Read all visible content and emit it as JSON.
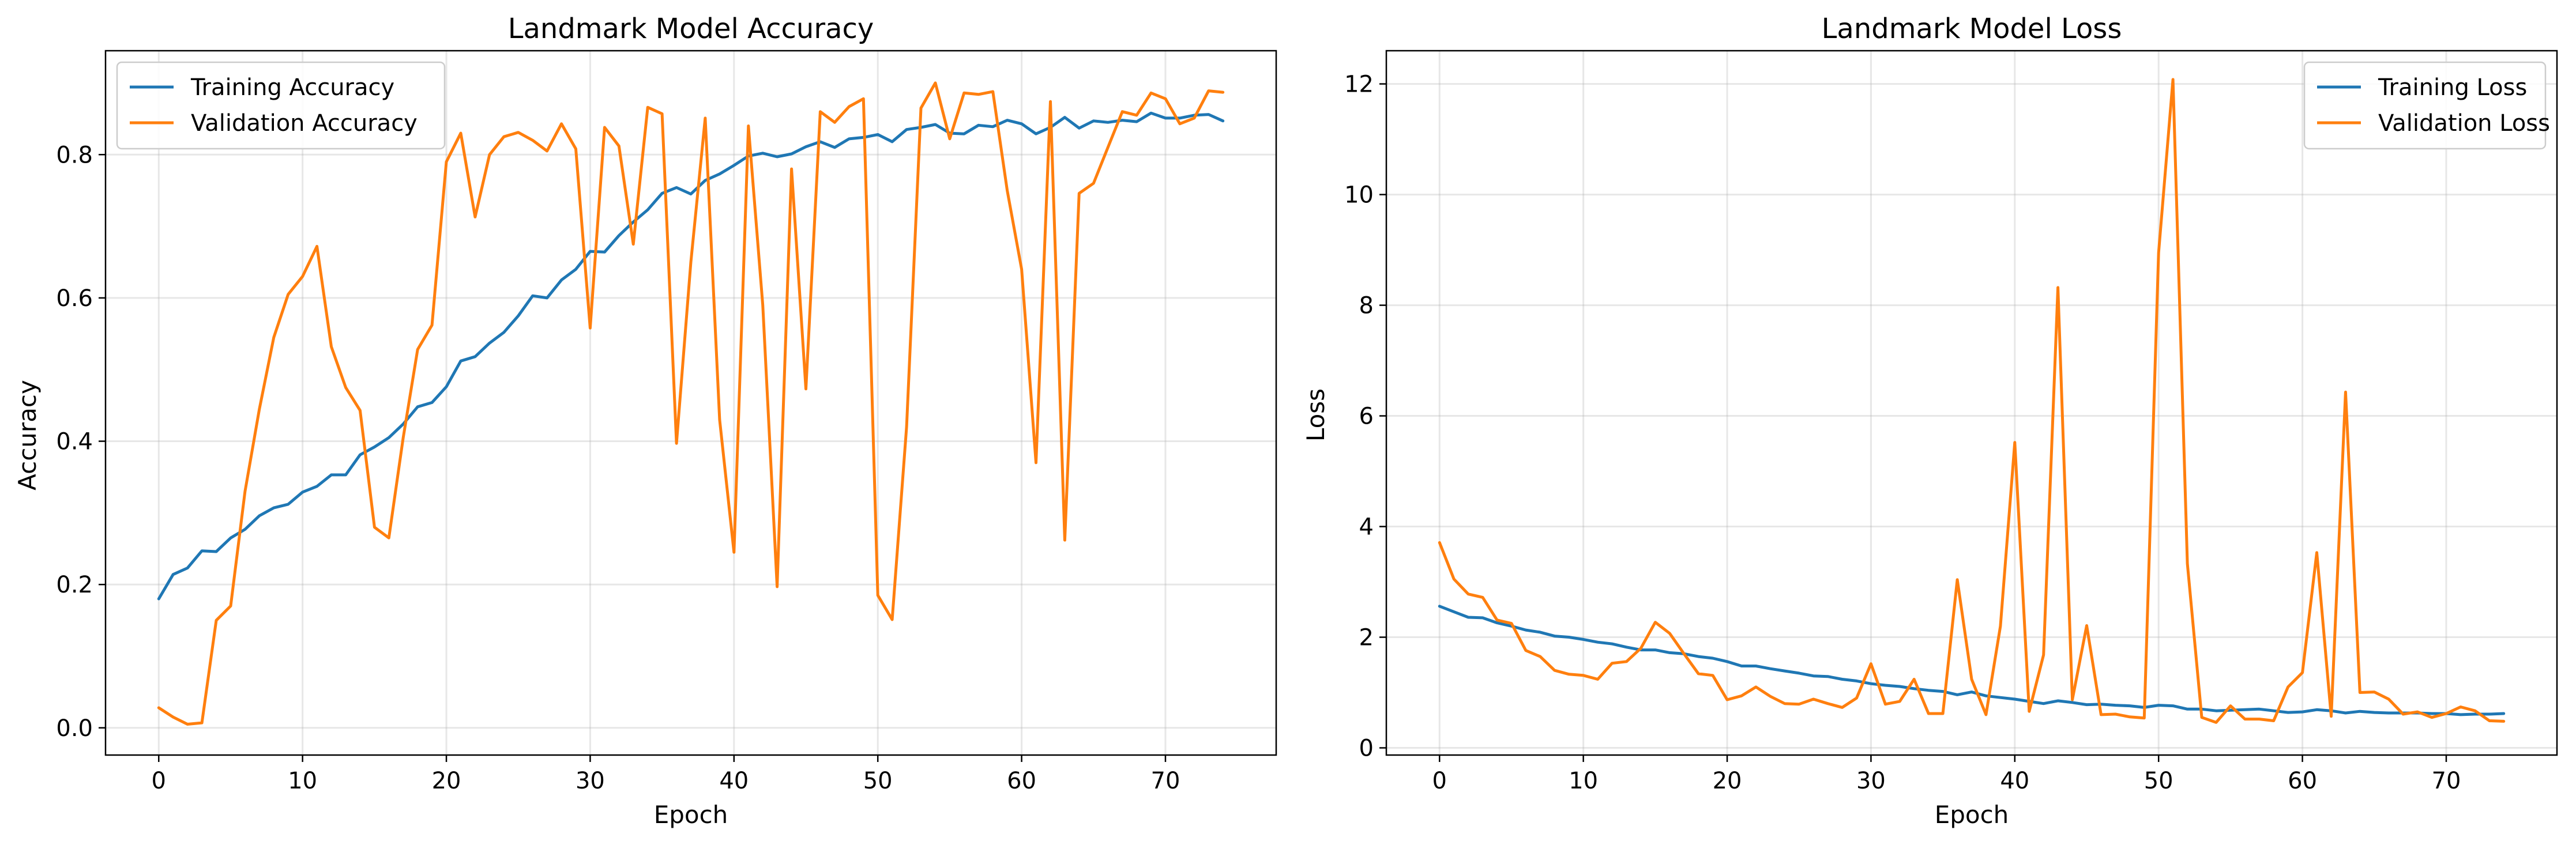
{
  "colors": {
    "training": "#1f77b4",
    "validation": "#ff7f0e"
  },
  "chart_data": [
    {
      "type": "line",
      "title": "Landmark Model Accuracy",
      "xlabel": "Epoch",
      "ylabel": "Accuracy",
      "xlim": [
        -3.7,
        77.7
      ],
      "ylim": [
        -0.038,
        0.945
      ],
      "xticks": [
        0,
        10,
        20,
        30,
        40,
        50,
        60,
        70
      ],
      "yticks": [
        0.0,
        0.2,
        0.4,
        0.6,
        0.8
      ],
      "ytick_labels": [
        "0.0",
        "0.2",
        "0.4",
        "0.6",
        "0.8"
      ],
      "grid": true,
      "legend": "top-left",
      "x": [
        0,
        1,
        2,
        3,
        4,
        5,
        6,
        7,
        8,
        9,
        10,
        11,
        12,
        13,
        14,
        15,
        16,
        17,
        18,
        19,
        20,
        21,
        22,
        23,
        24,
        25,
        26,
        27,
        28,
        29,
        30,
        31,
        32,
        33,
        34,
        35,
        36,
        37,
        38,
        39,
        40,
        41,
        42,
        43,
        44,
        45,
        46,
        47,
        48,
        49,
        50,
        51,
        52,
        53,
        54,
        55,
        56,
        57,
        58,
        59,
        60,
        61,
        62,
        63,
        64,
        65,
        66,
        67,
        68,
        69,
        70,
        71,
        72,
        73,
        74
      ],
      "series": [
        {
          "name": "Training Accuracy",
          "color": "#1f77b4",
          "values": [
            0.18,
            0.214,
            0.223,
            0.247,
            0.246,
            0.265,
            0.277,
            0.296,
            0.307,
            0.312,
            0.329,
            0.337,
            0.353,
            0.353,
            0.381,
            0.392,
            0.405,
            0.424,
            0.448,
            0.454,
            0.476,
            0.512,
            0.518,
            0.537,
            0.552,
            0.575,
            0.603,
            0.6,
            0.625,
            0.64,
            0.665,
            0.664,
            0.687,
            0.706,
            0.723,
            0.746,
            0.754,
            0.745,
            0.764,
            0.773,
            0.785,
            0.798,
            0.802,
            0.797,
            0.801,
            0.811,
            0.818,
            0.81,
            0.822,
            0.824,
            0.828,
            0.818,
            0.835,
            0.838,
            0.842,
            0.83,
            0.829,
            0.841,
            0.839,
            0.848,
            0.843,
            0.829,
            0.838,
            0.852,
            0.837,
            0.847,
            0.845,
            0.848,
            0.846,
            0.858,
            0.851,
            0.851,
            0.855,
            0.856,
            0.847
          ]
        },
        {
          "name": "Validation Accuracy",
          "color": "#ff7f0e",
          "values": [
            0.028,
            0.015,
            0.005,
            0.007,
            0.15,
            0.17,
            0.33,
            0.445,
            0.545,
            0.605,
            0.63,
            0.672,
            0.532,
            0.475,
            0.443,
            0.28,
            0.265,
            0.405,
            0.528,
            0.562,
            0.79,
            0.83,
            0.713,
            0.8,
            0.825,
            0.831,
            0.82,
            0.805,
            0.843,
            0.808,
            0.558,
            0.838,
            0.812,
            0.675,
            0.866,
            0.857,
            0.397,
            0.65,
            0.851,
            0.43,
            0.245,
            0.84,
            0.59,
            0.197,
            0.78,
            0.473,
            0.86,
            0.845,
            0.867,
            0.878,
            0.185,
            0.151,
            0.42,
            0.865,
            0.9,
            0.822,
            0.886,
            0.884,
            0.888,
            0.75,
            0.64,
            0.37,
            0.874,
            0.262,
            0.746,
            0.76,
            0.81,
            0.86,
            0.855,
            0.886,
            0.878,
            0.843,
            0.851,
            0.889,
            0.887
          ]
        }
      ]
    },
    {
      "type": "line",
      "title": "Landmark Model Loss",
      "xlabel": "Epoch",
      "ylabel": "Loss",
      "xlim": [
        -3.7,
        77.7
      ],
      "ylim": [
        -0.13,
        12.6
      ],
      "xticks": [
        0,
        10,
        20,
        30,
        40,
        50,
        60,
        70
      ],
      "yticks": [
        0,
        2,
        4,
        6,
        8,
        10,
        12
      ],
      "ytick_labels": [
        "0",
        "2",
        "4",
        "6",
        "8",
        "10",
        "12"
      ],
      "grid": true,
      "legend": "top-right",
      "x": [
        0,
        1,
        2,
        3,
        4,
        5,
        6,
        7,
        8,
        9,
        10,
        11,
        12,
        13,
        14,
        15,
        16,
        17,
        18,
        19,
        20,
        21,
        22,
        23,
        24,
        25,
        26,
        27,
        28,
        29,
        30,
        31,
        32,
        33,
        34,
        35,
        36,
        37,
        38,
        39,
        40,
        41,
        42,
        43,
        44,
        45,
        46,
        47,
        48,
        49,
        50,
        51,
        52,
        53,
        54,
        55,
        56,
        57,
        58,
        59,
        60,
        61,
        62,
        63,
        64,
        65,
        66,
        67,
        68,
        69,
        70,
        71,
        72,
        73,
        74
      ],
      "series": [
        {
          "name": "Training Loss",
          "color": "#1f77b4",
          "values": [
            2.56,
            2.46,
            2.36,
            2.35,
            2.26,
            2.2,
            2.13,
            2.09,
            2.02,
            2.0,
            1.96,
            1.91,
            1.88,
            1.82,
            1.77,
            1.77,
            1.72,
            1.7,
            1.65,
            1.62,
            1.56,
            1.48,
            1.48,
            1.43,
            1.39,
            1.35,
            1.3,
            1.29,
            1.24,
            1.21,
            1.16,
            1.13,
            1.11,
            1.07,
            1.04,
            1.02,
            0.96,
            1.01,
            0.94,
            0.91,
            0.88,
            0.84,
            0.8,
            0.85,
            0.82,
            0.78,
            0.79,
            0.77,
            0.76,
            0.73,
            0.77,
            0.76,
            0.7,
            0.7,
            0.67,
            0.68,
            0.69,
            0.7,
            0.67,
            0.64,
            0.65,
            0.69,
            0.67,
            0.63,
            0.66,
            0.64,
            0.63,
            0.63,
            0.63,
            0.62,
            0.62,
            0.6,
            0.61,
            0.61,
            0.62
          ]
        },
        {
          "name": "Validation Loss",
          "color": "#ff7f0e",
          "values": [
            3.71,
            3.05,
            2.78,
            2.72,
            2.31,
            2.25,
            1.76,
            1.65,
            1.4,
            1.33,
            1.31,
            1.24,
            1.53,
            1.56,
            1.8,
            2.27,
            2.07,
            1.7,
            1.34,
            1.31,
            0.87,
            0.94,
            1.1,
            0.93,
            0.8,
            0.79,
            0.88,
            0.8,
            0.73,
            0.9,
            1.52,
            0.79,
            0.84,
            1.24,
            0.62,
            0.62,
            3.04,
            1.24,
            0.6,
            2.2,
            5.52,
            0.66,
            1.68,
            8.32,
            0.87,
            2.21,
            0.6,
            0.61,
            0.56,
            0.54,
            8.95,
            12.08,
            3.33,
            0.55,
            0.46,
            0.76,
            0.52,
            0.52,
            0.49,
            1.1,
            1.36,
            3.53,
            0.57,
            6.43,
            1.0,
            1.01,
            0.88,
            0.61,
            0.65,
            0.55,
            0.62,
            0.74,
            0.67,
            0.49,
            0.48
          ]
        }
      ]
    }
  ]
}
